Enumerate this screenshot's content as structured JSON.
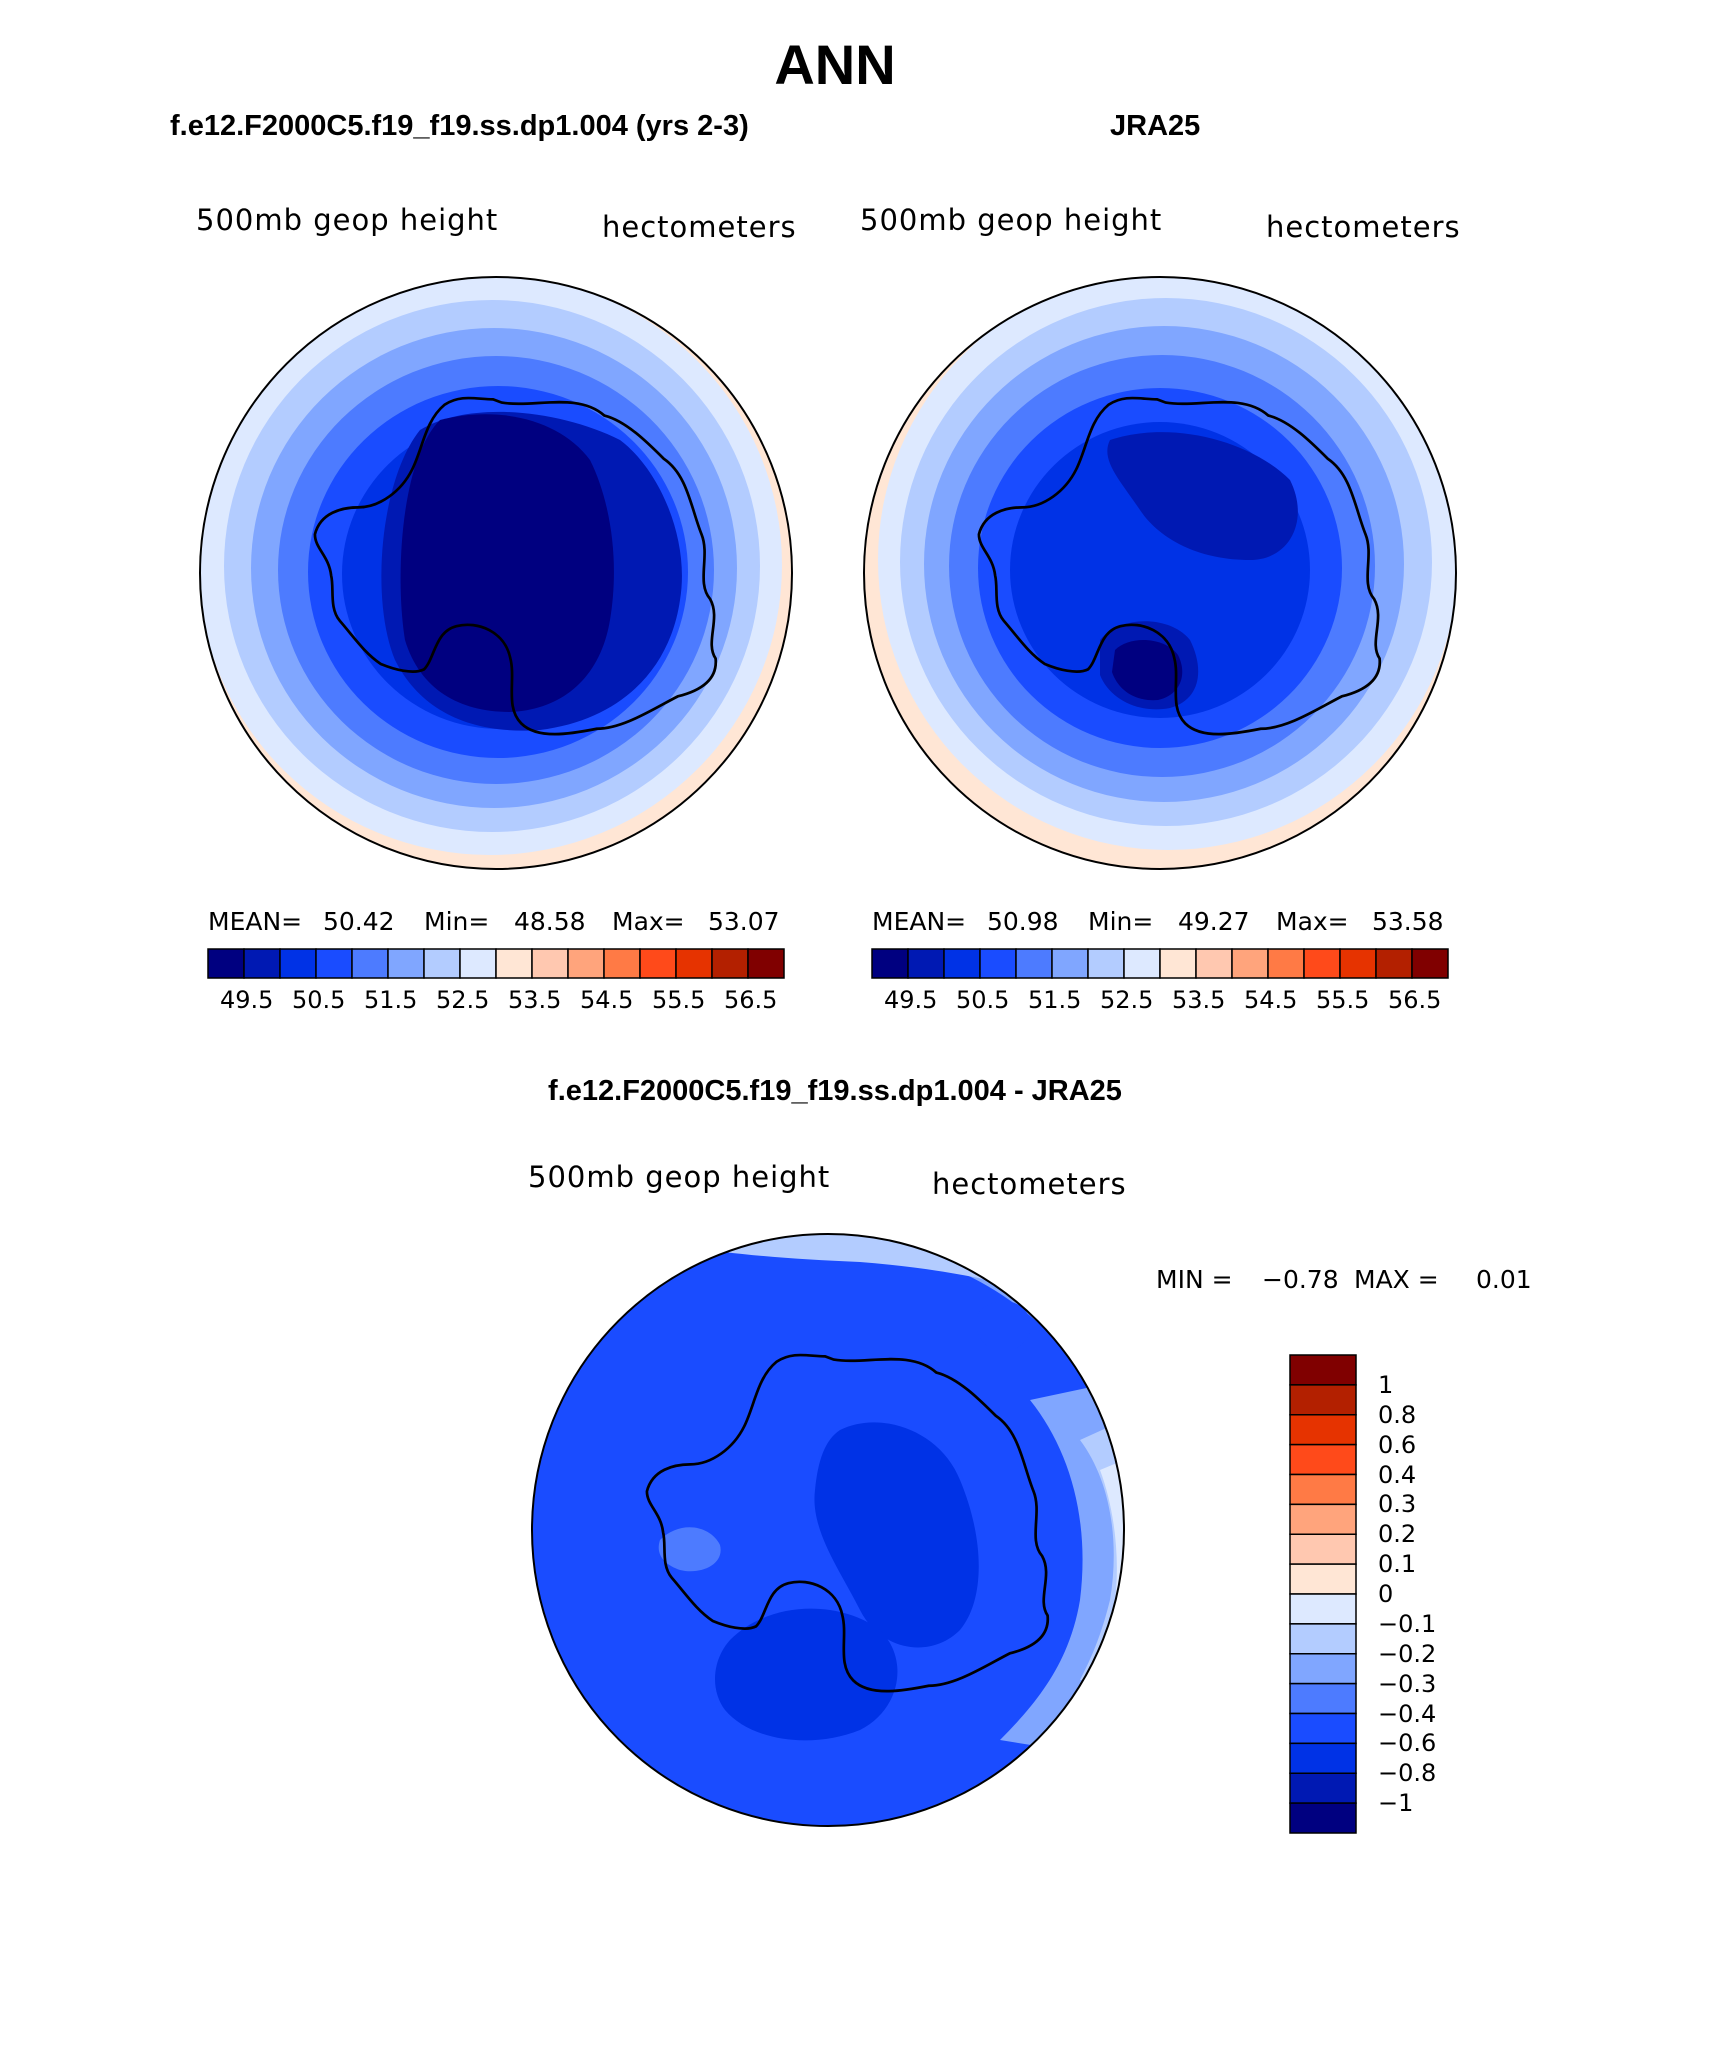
{
  "figure": {
    "main_title": "ANN",
    "panel_left": {
      "title": "f.e12.F2000C5.f19_f19.ss.dp1.004 (yrs 2-3)",
      "left_label": "500mb geop height",
      "right_label": "hectometers",
      "stats": {
        "mean_label": "MEAN=",
        "mean": "50.42",
        "min_label": "Min=",
        "min": "48.58",
        "max_label": "Max=",
        "max": "53.07"
      }
    },
    "panel_right": {
      "title": "JRA25",
      "left_label": "500mb geop height",
      "right_label": "hectometers",
      "stats": {
        "mean_label": "MEAN=",
        "mean": "50.98",
        "min_label": "Min=",
        "min": "49.27",
        "max_label": "Max=",
        "max": "53.58"
      }
    },
    "panel_diff": {
      "title": "f.e12.F2000C5.f19_f19.ss.dp1.004 - JRA25",
      "left_label": "500mb geop height",
      "right_label": "hectometers",
      "minmax": {
        "min_label": "MIN =",
        "min": "−0.78",
        "max_label": "MAX =",
        "max": "0.01"
      }
    }
  },
  "colorbar_abs": {
    "ticks": [
      "49.5",
      "50.5",
      "51.5",
      "52.5",
      "53.5",
      "54.5",
      "55.5",
      "56.5"
    ],
    "colors": [
      "#000080",
      "#0019b3",
      "#0032e6",
      "#1a4cff",
      "#4d7bff",
      "#80a6ff",
      "#b3ccff",
      "#dde9ff",
      "#ffe6d5",
      "#ffc8b0",
      "#ffa47c",
      "#ff7a45",
      "#ff4a1a",
      "#e63300",
      "#b32000",
      "#800000"
    ]
  },
  "colorbar_diff": {
    "ticks": [
      "1",
      "0.8",
      "0.6",
      "0.4",
      "0.3",
      "0.2",
      "0.1",
      "0",
      "−0.1",
      "−0.2",
      "−0.3",
      "−0.4",
      "−0.6",
      "−0.8",
      "−1"
    ],
    "colors_top_to_bottom": [
      "#800000",
      "#b32000",
      "#e63300",
      "#ff4a1a",
      "#ff7a45",
      "#ffa47c",
      "#ffc8b0",
      "#ffe6d5",
      "#dde9ff",
      "#b3ccff",
      "#80a6ff",
      "#4d7bff",
      "#1a4cff",
      "#0032e6",
      "#0019b3",
      "#000080"
    ]
  }
}
